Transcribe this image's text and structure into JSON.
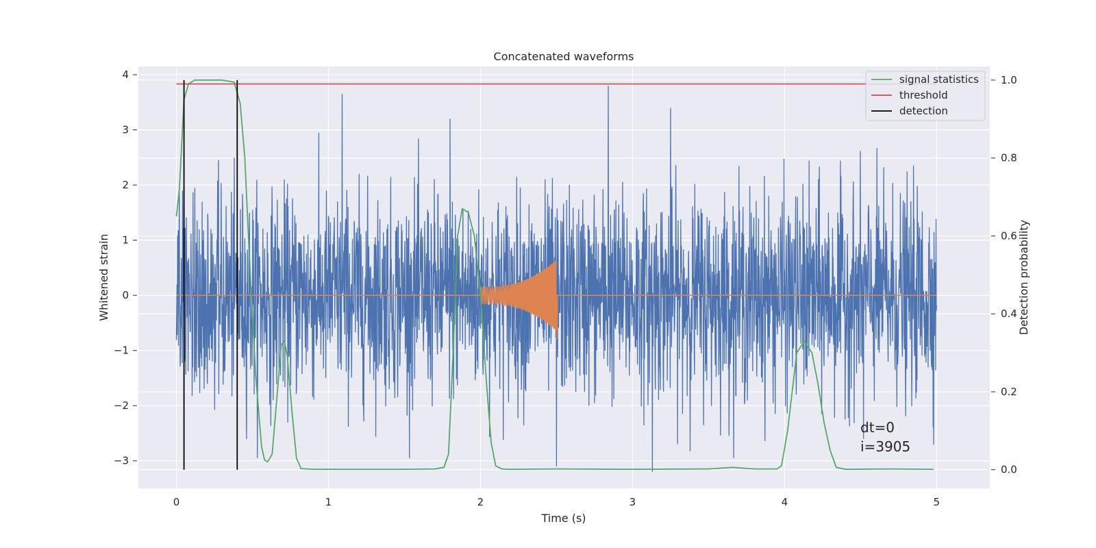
{
  "chart_data": {
    "type": "line",
    "title": "Concatenated waveforms",
    "xlabel": "Time (s)",
    "ylabel": "Whitened strain",
    "ylabel_right": "Detection probability",
    "xlim": [
      -0.25,
      5.35
    ],
    "ylim": [
      -3.5,
      4.15
    ],
    "ylim_right": [
      -0.048,
      1.035
    ],
    "x_ticks": [
      0,
      1,
      2,
      3,
      4,
      5
    ],
    "x_tick_labels": [
      "0",
      "1",
      "2",
      "3",
      "4",
      "5"
    ],
    "y_ticks": [
      -3,
      -2,
      -1,
      0,
      1,
      2,
      3,
      4
    ],
    "y_tick_labels": [
      "−3",
      "−2",
      "−1",
      "0",
      "1",
      "2",
      "3",
      "4"
    ],
    "y_right_ticks": [
      0.0,
      0.2,
      0.4,
      0.6,
      0.8,
      1.0
    ],
    "y_right_tick_labels": [
      "0.0",
      "0.2",
      "0.4",
      "0.6",
      "0.8",
      "1.0"
    ],
    "grid": true,
    "legend_position": "top-right",
    "legend": [
      "signal statistics",
      "threshold",
      "detection"
    ],
    "annotation_lines": [
      "dt=0",
      "i=3905"
    ],
    "colors": {
      "strain": "#4c72b0",
      "injected": "#dd8452",
      "signal_statistics": "#55a868",
      "threshold": "#c44e52",
      "detection": "#000000",
      "plot_bg": "#eaeaf2",
      "grid": "#ffffff"
    },
    "series": [
      {
        "name": "",
        "axis": "left",
        "kind": "noise",
        "x_range": [
          0,
          5
        ],
        "amplitude_rms": 0.9,
        "notable_peaks": [
          {
            "x": 0.05,
            "y": 2.9
          },
          {
            "x": 1.09,
            "y": 3.65
          },
          {
            "x": 1.8,
            "y": 3.2
          },
          {
            "x": 2.84,
            "y": 3.8
          },
          {
            "x": 3.25,
            "y": 3.4
          },
          {
            "x": 3.13,
            "y": -3.2
          },
          {
            "x": 2.5,
            "y": -3.1
          },
          {
            "x": 4.52,
            "y": -2.6
          }
        ]
      },
      {
        "name": "",
        "axis": "left",
        "kind": "chirp",
        "x": [
          2.0,
          2.5
        ],
        "start_amplitude": 0.15,
        "end_amplitude": 0.65,
        "baseline": 0
      },
      {
        "name": "signal statistics",
        "axis": "right",
        "x": [
          0.0,
          0.02,
          0.05,
          0.08,
          0.12,
          0.2,
          0.3,
          0.38,
          0.42,
          0.45,
          0.48,
          0.52,
          0.56,
          0.58,
          0.6,
          0.63,
          0.66,
          0.69,
          0.71,
          0.73,
          0.76,
          0.79,
          0.82,
          0.9,
          1.2,
          1.5,
          1.7,
          1.76,
          1.79,
          1.82,
          1.85,
          1.88,
          1.92,
          1.96,
          2.0,
          2.04,
          2.07,
          2.1,
          2.14,
          2.2,
          2.5,
          3.0,
          3.5,
          3.66,
          3.8,
          3.95,
          3.98,
          4.02,
          4.08,
          4.13,
          4.18,
          4.22,
          4.26,
          4.3,
          4.34,
          4.4,
          4.7,
          4.98
        ],
        "values": [
          0.65,
          0.72,
          0.95,
          0.99,
          1.0,
          1.0,
          1.0,
          0.995,
          0.94,
          0.8,
          0.55,
          0.25,
          0.06,
          0.025,
          0.02,
          0.04,
          0.18,
          0.32,
          0.33,
          0.29,
          0.15,
          0.03,
          0.003,
          0.001,
          0.001,
          0.001,
          0.002,
          0.006,
          0.04,
          0.3,
          0.6,
          0.67,
          0.66,
          0.6,
          0.45,
          0.22,
          0.07,
          0.01,
          0.002,
          0.001,
          0.002,
          0.001,
          0.002,
          0.006,
          0.002,
          0.002,
          0.01,
          0.1,
          0.3,
          0.33,
          0.3,
          0.22,
          0.12,
          0.05,
          0.006,
          0.001,
          0.002,
          0.001
        ]
      },
      {
        "name": "threshold",
        "axis": "right",
        "x": [
          0.0,
          5.0
        ],
        "values": [
          0.99,
          0.99
        ]
      },
      {
        "name": "detection",
        "axis": "right",
        "x": [
          0.05,
          0.4
        ],
        "values": [
          1.0,
          1.0
        ]
      }
    ]
  }
}
